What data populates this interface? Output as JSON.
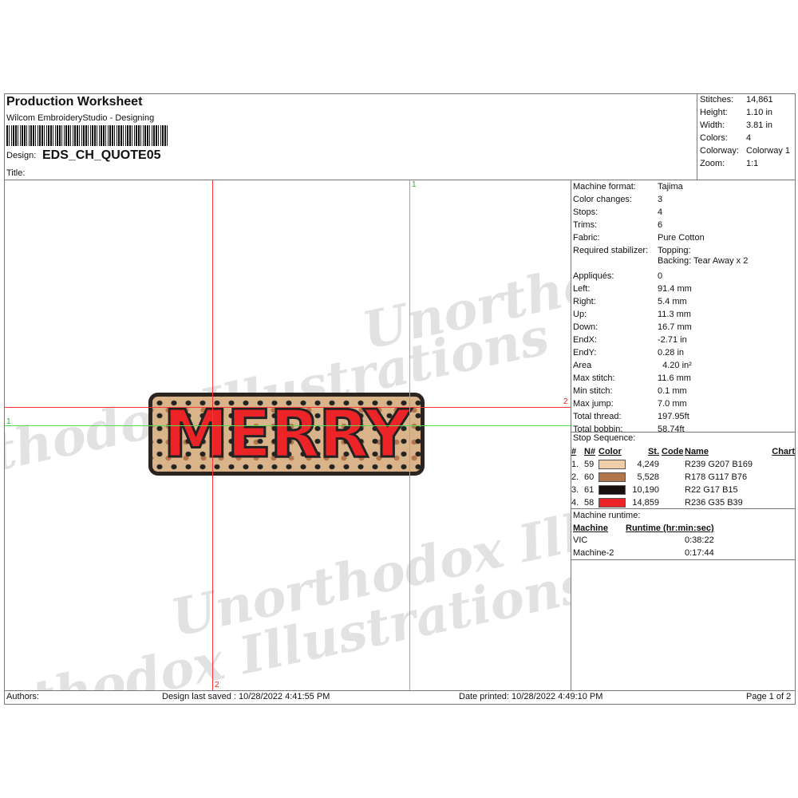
{
  "header": {
    "title": "Production Worksheet",
    "software": "Wilcom EmbroideryStudio - Designing",
    "design_label": "Design:",
    "design_name": "EDS_CH_QUOTE05",
    "title_label": "Title:"
  },
  "summary": [
    {
      "label": "Stitches:",
      "value": "14,861"
    },
    {
      "label": "Height:",
      "value": "1.10 in"
    },
    {
      "label": "Width:",
      "value": "3.81 in"
    },
    {
      "label": "Colors:",
      "value": "4"
    },
    {
      "label": "Colorway:",
      "value": "Colorway 1"
    },
    {
      "label": "Zoom:",
      "value": "1:1"
    }
  ],
  "details": [
    {
      "label": "Machine format:",
      "value": "Tajima"
    },
    {
      "label": "Color changes:",
      "value": "3"
    },
    {
      "label": "Stops:",
      "value": "4"
    },
    {
      "label": "Trims:",
      "value": "6"
    },
    {
      "label": "Fabric:",
      "value": "Pure Cotton"
    },
    {
      "label": "Required stabilizer:",
      "value": "Topping:"
    },
    {
      "label": "",
      "value": "Backing: Tear Away x 2"
    },
    {
      "label": "Appliqués:",
      "value": "0"
    },
    {
      "label": "Left:",
      "value": "91.4 mm"
    },
    {
      "label": "Right:",
      "value": "5.4 mm"
    },
    {
      "label": "Up:",
      "value": "11.3 mm"
    },
    {
      "label": "Down:",
      "value": "16.7 mm"
    },
    {
      "label": "EndX:",
      "value": "-2.71 in"
    },
    {
      "label": "EndY:",
      "value": "0.28 in"
    },
    {
      "label": "Area",
      "value": "  4.20 in²"
    },
    {
      "label": "Max stitch:",
      "value": "11.6 mm"
    },
    {
      "label": "Min stitch:",
      "value": "0.1 mm"
    },
    {
      "label": "Max jump:",
      "value": "7.0 mm"
    },
    {
      "label": "Total thread:",
      "value": "197.95ft"
    },
    {
      "label": "Total bobbin:",
      "value": "58.74ft"
    }
  ],
  "stop_sequence": {
    "title": "Stop Sequence:",
    "headers": [
      "#",
      "N#",
      "Color",
      "St.",
      "Code",
      "Name",
      "Chart"
    ],
    "rows": [
      {
        "num": "1.",
        "n": "59",
        "color": "#efcfa9",
        "st": "4,249",
        "code": "",
        "name": "R239 G207 B169"
      },
      {
        "num": "2.",
        "n": "60",
        "color": "#b2754c",
        "st": "5,528",
        "code": "",
        "name": "R178 G117 B76"
      },
      {
        "num": "3.",
        "n": "61",
        "color": "#16110f",
        "st": "10,190",
        "code": "",
        "name": "R22 G17 B15"
      },
      {
        "num": "4.",
        "n": "58",
        "color": "#ec2327",
        "st": "14,859",
        "code": "",
        "name": "R236 G35 B39"
      }
    ]
  },
  "runtime": {
    "title": "Machine runtime:",
    "headers": [
      "Machine",
      "Runtime (hr:min:sec)"
    ],
    "rows": [
      {
        "machine": "VIC",
        "time": "0:38:22"
      },
      {
        "machine": "Machine-2",
        "time": "0:17:44"
      }
    ]
  },
  "canvas": {
    "design_text": "MERRY",
    "guide_labels": [
      "1",
      "2",
      "1",
      "2"
    ],
    "watermark": "Unorthodox Illustrations"
  },
  "footer": {
    "authors": "Authors:",
    "saved": "Design last saved : 10/28/2022 4:41:55 PM",
    "printed": "Date printed: 10/28/2022 4:49:10 PM",
    "page": "Page 1 of 2"
  }
}
